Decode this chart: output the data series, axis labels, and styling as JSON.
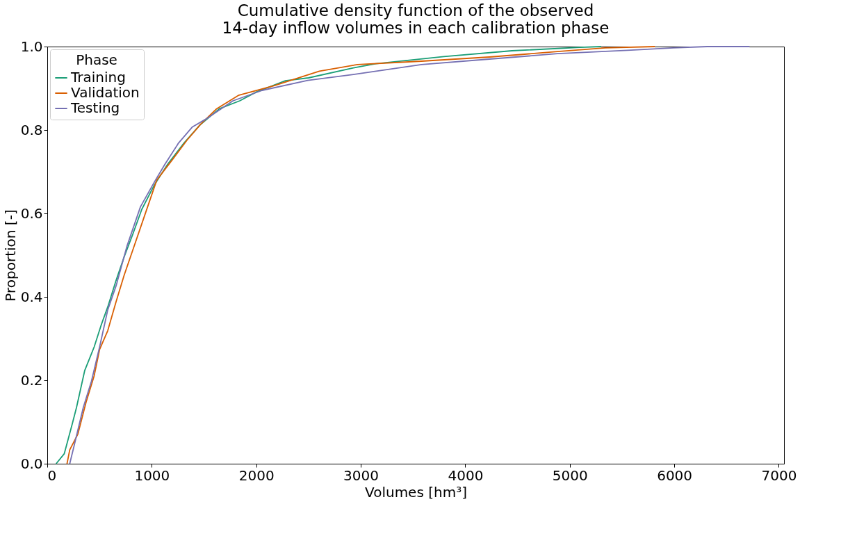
{
  "chart_data": {
    "type": "line",
    "title": "Cumulative density function of the observed\n14-day inflow volumes in each calibration phase",
    "xlabel": "Volumes [hm³]",
    "ylabel": "Proportion [-]",
    "legend_title": "Phase",
    "xlim": [
      0,
      7050
    ],
    "ylim": [
      0,
      1.0
    ],
    "xticks": [
      0,
      1000,
      2000,
      3000,
      4000,
      5000,
      6000,
      7000
    ],
    "yticks": [
      {
        "value": 0,
        "label": "0.0"
      },
      0.2,
      0.4,
      0.6,
      0.8,
      {
        "value": 1,
        "label": "1.0"
      }
    ],
    "grid": false,
    "legend": "top left",
    "marker": "none",
    "line_style": "solid",
    "series": [
      {
        "name": "Training",
        "color": "#1b9e77",
        "x": [
          85,
          163,
          241,
          280,
          358,
          449,
          514,
          579,
          658,
          736,
          814,
          905,
          1022,
          1152,
          1309,
          1465,
          1647,
          1842,
          2000,
          2279,
          2500,
          2930,
          3145,
          3796,
          4447,
          5098,
          5300
        ],
        "values": [
          0,
          0.024,
          0.097,
          0.135,
          0.223,
          0.28,
          0.331,
          0.376,
          0.439,
          0.496,
          0.547,
          0.61,
          0.667,
          0.718,
          0.769,
          0.813,
          0.851,
          0.87,
          0.891,
          0.918,
          0.925,
          0.949,
          0.959,
          0.976,
          0.99,
          0.998,
          1.0
        ]
      },
      {
        "name": "Validation",
        "color": "#d95f02",
        "x": [
          189,
          215,
          293,
          371,
          449,
          501,
          579,
          658,
          736,
          840,
          944,
          1048,
          1204,
          1335,
          1465,
          1621,
          1829,
          2168,
          2604,
          2969,
          3581,
          4232,
          4883,
          5339,
          5814
        ],
        "values": [
          0,
          0.033,
          0.071,
          0.147,
          0.211,
          0.274,
          0.319,
          0.388,
          0.452,
          0.528,
          0.604,
          0.68,
          0.731,
          0.775,
          0.813,
          0.851,
          0.883,
          0.906,
          0.941,
          0.957,
          0.965,
          0.975,
          0.988,
          0.997,
          1.0
        ]
      },
      {
        "name": "Testing",
        "color": "#7570b3",
        "x": [
          215,
          254,
          345,
          423,
          501,
          579,
          658,
          762,
          892,
          1022,
          1126,
          1257,
          1387,
          1517,
          1777,
          2057,
          2493,
          2930,
          3581,
          4232,
          4883,
          5553,
          5990,
          6315,
          6720
        ],
        "values": [
          0,
          0.04,
          0.135,
          0.198,
          0.28,
          0.369,
          0.426,
          0.521,
          0.616,
          0.674,
          0.718,
          0.769,
          0.807,
          0.826,
          0.87,
          0.895,
          0.919,
          0.933,
          0.957,
          0.97,
          0.983,
          0.991,
          0.997,
          1.0,
          1.0
        ]
      }
    ]
  }
}
